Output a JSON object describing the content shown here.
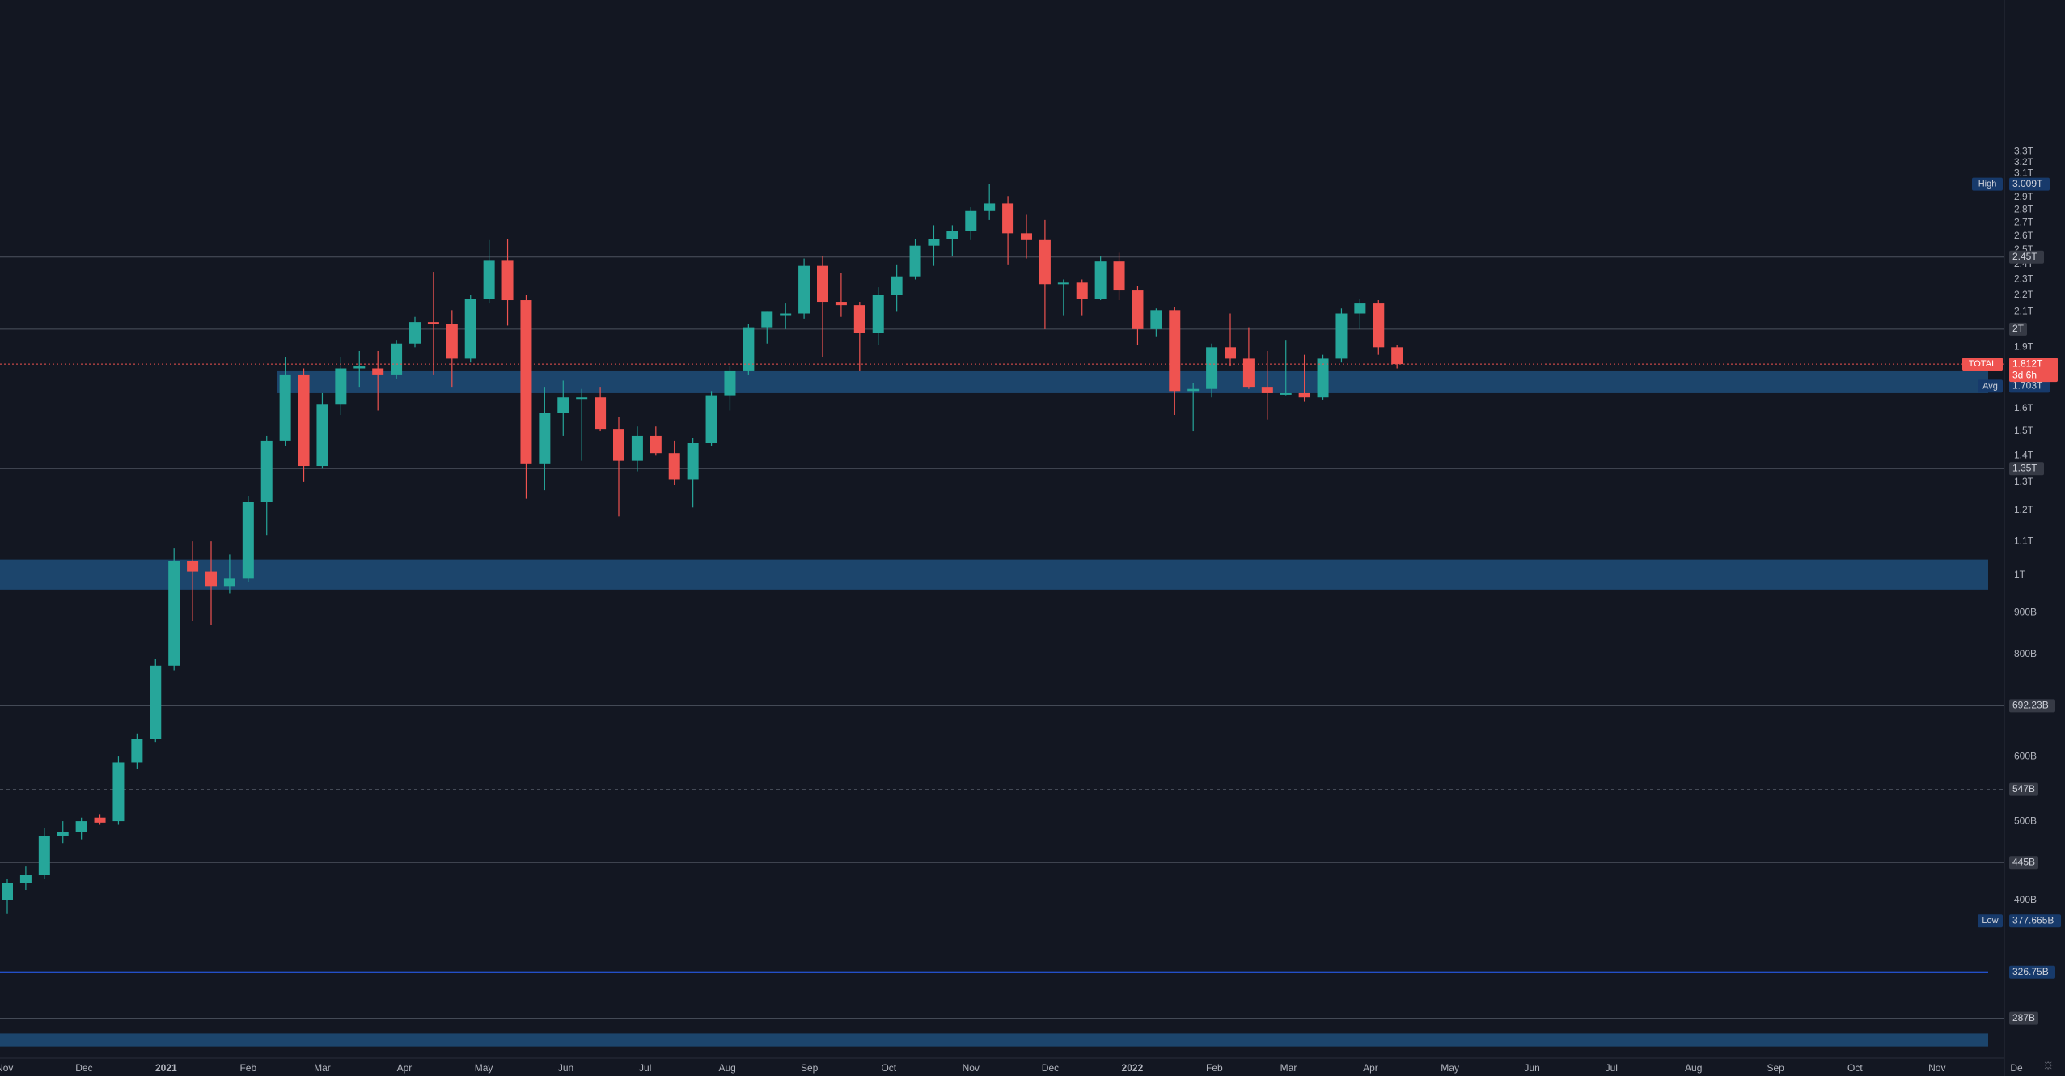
{
  "chart_data": {
    "type": "candlestick",
    "symbol": "TOTAL",
    "countdown": "3d 6h",
    "interval": "weekly",
    "x_start": "2020-11-02",
    "x_end": "2022-12-01",
    "y_scale": "log",
    "ylim": [
      260,
      3400
    ],
    "colors": {
      "background": "#131722",
      "up": "#26a69a",
      "down": "#ef5350",
      "zone": "#1f4e79",
      "line": "#4c525e",
      "tag": "#363a45",
      "blue_tag": "#173a6b",
      "axis_text": "#b2b5be"
    },
    "y_ticks": [
      {
        "value": 3300,
        "label": "3.3T"
      },
      {
        "value": 3200,
        "label": "3.2T"
      },
      {
        "value": 3100,
        "label": "3.1T"
      },
      {
        "value": 2900,
        "label": "2.9T"
      },
      {
        "value": 2800,
        "label": "2.8T"
      },
      {
        "value": 2700,
        "label": "2.7T"
      },
      {
        "value": 2600,
        "label": "2.6T"
      },
      {
        "value": 2500,
        "label": "2.5T"
      },
      {
        "value": 2400,
        "label": "2.4T"
      },
      {
        "value": 2300,
        "label": "2.3T"
      },
      {
        "value": 2200,
        "label": "2.2T"
      },
      {
        "value": 2100,
        "label": "2.1T"
      },
      {
        "value": 1900,
        "label": "1.9T"
      },
      {
        "value": 1600,
        "label": "1.6T"
      },
      {
        "value": 1500,
        "label": "1.5T"
      },
      {
        "value": 1400,
        "label": "1.4T"
      },
      {
        "value": 1300,
        "label": "1.3T"
      },
      {
        "value": 1200,
        "label": "1.2T"
      },
      {
        "value": 1100,
        "label": "1.1T"
      },
      {
        "value": 1000,
        "label": "1T"
      },
      {
        "value": 900,
        "label": "900B"
      },
      {
        "value": 800,
        "label": "800B"
      },
      {
        "value": 600,
        "label": "600B"
      },
      {
        "value": 500,
        "label": "500B"
      },
      {
        "value": 400,
        "label": "400B"
      }
    ],
    "x_ticks": [
      {
        "date": "2020-11-01",
        "label": "Nov",
        "bold": false
      },
      {
        "date": "2020-12-01",
        "label": "Dec",
        "bold": false
      },
      {
        "date": "2021-01-01",
        "label": "2021",
        "bold": true
      },
      {
        "date": "2021-02-01",
        "label": "Feb",
        "bold": false
      },
      {
        "date": "2021-03-01",
        "label": "Mar",
        "bold": false
      },
      {
        "date": "2021-04-01",
        "label": "Apr",
        "bold": false
      },
      {
        "date": "2021-05-01",
        "label": "May",
        "bold": false
      },
      {
        "date": "2021-06-01",
        "label": "Jun",
        "bold": false
      },
      {
        "date": "2021-07-01",
        "label": "Jul",
        "bold": false
      },
      {
        "date": "2021-08-01",
        "label": "Aug",
        "bold": false
      },
      {
        "date": "2021-09-01",
        "label": "Sep",
        "bold": false
      },
      {
        "date": "2021-10-01",
        "label": "Oct",
        "bold": false
      },
      {
        "date": "2021-11-01",
        "label": "Nov",
        "bold": false
      },
      {
        "date": "2021-12-01",
        "label": "Dec",
        "bold": false
      },
      {
        "date": "2022-01-01",
        "label": "2022",
        "bold": true
      },
      {
        "date": "2022-02-01",
        "label": "Feb",
        "bold": false
      },
      {
        "date": "2022-03-01",
        "label": "Mar",
        "bold": false
      },
      {
        "date": "2022-04-01",
        "label": "Apr",
        "bold": false
      },
      {
        "date": "2022-05-01",
        "label": "May",
        "bold": false
      },
      {
        "date": "2022-06-01",
        "label": "Jun",
        "bold": false
      },
      {
        "date": "2022-07-01",
        "label": "Jul",
        "bold": false
      },
      {
        "date": "2022-08-01",
        "label": "Aug",
        "bold": false
      },
      {
        "date": "2022-09-01",
        "label": "Sep",
        "bold": false
      },
      {
        "date": "2022-10-01",
        "label": "Oct",
        "bold": false
      },
      {
        "date": "2022-11-01",
        "label": "Nov",
        "bold": false
      },
      {
        "date": "2022-12-01",
        "label": "De",
        "bold": false
      }
    ],
    "horizontal_levels": [
      {
        "value": 2450,
        "label": "2.45T",
        "style": "solid"
      },
      {
        "value": 2000,
        "label": "2T",
        "style": "solid"
      },
      {
        "value": 1350,
        "label": "1.35T",
        "style": "solid"
      },
      {
        "value": 692.23,
        "label": "692.23B",
        "style": "solid"
      },
      {
        "value": 547,
        "label": "547B",
        "style": "dashed"
      },
      {
        "value": 445,
        "label": "445B",
        "style": "solid"
      },
      {
        "value": 326.75,
        "label": "326.75B",
        "style": "blue"
      },
      {
        "value": 287,
        "label": "287B",
        "style": "solid"
      }
    ],
    "zones": [
      {
        "from": 1670,
        "to": 1780,
        "start_date": "2021-02-15"
      },
      {
        "from": 960,
        "to": 1045,
        "start_date": "2020-11-02"
      },
      {
        "from": 265,
        "to": 275,
        "start_date": "2020-11-02"
      }
    ],
    "markers": [
      {
        "name": "High",
        "value": 3009,
        "label": "3.009T"
      },
      {
        "name": "Avg",
        "value": 1703,
        "label": "1.703T"
      },
      {
        "name": "Low",
        "value": 377.665,
        "label": "377.665B"
      }
    ],
    "last_price": {
      "value": 1812,
      "label": "1.812T"
    },
    "candles": [
      {
        "date": "2020-11-02",
        "o": 400,
        "h": 425,
        "l": 385,
        "c": 420
      },
      {
        "date": "2020-11-09",
        "o": 420,
        "h": 440,
        "l": 412,
        "c": 430
      },
      {
        "date": "2020-11-16",
        "o": 430,
        "h": 490,
        "l": 425,
        "c": 480
      },
      {
        "date": "2020-11-23",
        "o": 480,
        "h": 500,
        "l": 470,
        "c": 485
      },
      {
        "date": "2020-11-30",
        "o": 485,
        "h": 505,
        "l": 475,
        "c": 500
      },
      {
        "date": "2020-12-07",
        "o": 505,
        "h": 510,
        "l": 495,
        "c": 498
      },
      {
        "date": "2020-12-14",
        "o": 500,
        "h": 600,
        "l": 495,
        "c": 590
      },
      {
        "date": "2020-12-21",
        "o": 590,
        "h": 640,
        "l": 580,
        "c": 630
      },
      {
        "date": "2020-12-28",
        "o": 630,
        "h": 790,
        "l": 625,
        "c": 775
      },
      {
        "date": "2021-01-04",
        "o": 775,
        "h": 1080,
        "l": 765,
        "c": 1040
      },
      {
        "date": "2021-01-11",
        "o": 1040,
        "h": 1100,
        "l": 880,
        "c": 1010
      },
      {
        "date": "2021-01-18",
        "o": 1010,
        "h": 1100,
        "l": 870,
        "c": 970
      },
      {
        "date": "2021-01-25",
        "o": 970,
        "h": 1060,
        "l": 950,
        "c": 990
      },
      {
        "date": "2021-02-01",
        "o": 990,
        "h": 1250,
        "l": 980,
        "c": 1230
      },
      {
        "date": "2021-02-08",
        "o": 1230,
        "h": 1480,
        "l": 1120,
        "c": 1460
      },
      {
        "date": "2021-02-15",
        "o": 1460,
        "h": 1850,
        "l": 1440,
        "c": 1760
      },
      {
        "date": "2021-02-22",
        "o": 1760,
        "h": 1790,
        "l": 1300,
        "c": 1360
      },
      {
        "date": "2021-03-01",
        "o": 1360,
        "h": 1670,
        "l": 1350,
        "c": 1620
      },
      {
        "date": "2021-03-08",
        "o": 1620,
        "h": 1850,
        "l": 1570,
        "c": 1790
      },
      {
        "date": "2021-03-15",
        "o": 1790,
        "h": 1880,
        "l": 1700,
        "c": 1800
      },
      {
        "date": "2021-03-22",
        "o": 1790,
        "h": 1880,
        "l": 1590,
        "c": 1760
      },
      {
        "date": "2021-03-29",
        "o": 1760,
        "h": 1940,
        "l": 1740,
        "c": 1920
      },
      {
        "date": "2021-04-05",
        "o": 1920,
        "h": 2070,
        "l": 1900,
        "c": 2040
      },
      {
        "date": "2021-04-12",
        "o": 2040,
        "h": 2350,
        "l": 1760,
        "c": 2030
      },
      {
        "date": "2021-04-19",
        "o": 2030,
        "h": 2110,
        "l": 1700,
        "c": 1840
      },
      {
        "date": "2021-04-26",
        "o": 1840,
        "h": 2200,
        "l": 1820,
        "c": 2180
      },
      {
        "date": "2021-05-03",
        "o": 2180,
        "h": 2570,
        "l": 2150,
        "c": 2430
      },
      {
        "date": "2021-05-10",
        "o": 2430,
        "h": 2580,
        "l": 2020,
        "c": 2170
      },
      {
        "date": "2021-05-17",
        "o": 2170,
        "h": 2200,
        "l": 1240,
        "c": 1370
      },
      {
        "date": "2021-05-24",
        "o": 1370,
        "h": 1700,
        "l": 1270,
        "c": 1580
      },
      {
        "date": "2021-05-31",
        "o": 1580,
        "h": 1730,
        "l": 1480,
        "c": 1650
      },
      {
        "date": "2021-06-07",
        "o": 1650,
        "h": 1690,
        "l": 1380,
        "c": 1650
      },
      {
        "date": "2021-06-14",
        "o": 1650,
        "h": 1700,
        "l": 1500,
        "c": 1510
      },
      {
        "date": "2021-06-21",
        "o": 1510,
        "h": 1560,
        "l": 1180,
        "c": 1380
      },
      {
        "date": "2021-06-28",
        "o": 1380,
        "h": 1520,
        "l": 1340,
        "c": 1480
      },
      {
        "date": "2021-07-05",
        "o": 1480,
        "h": 1520,
        "l": 1400,
        "c": 1410
      },
      {
        "date": "2021-07-12",
        "o": 1410,
        "h": 1460,
        "l": 1290,
        "c": 1310
      },
      {
        "date": "2021-07-19",
        "o": 1310,
        "h": 1470,
        "l": 1210,
        "c": 1450
      },
      {
        "date": "2021-07-26",
        "o": 1450,
        "h": 1680,
        "l": 1440,
        "c": 1660
      },
      {
        "date": "2021-08-02",
        "o": 1660,
        "h": 1800,
        "l": 1590,
        "c": 1780
      },
      {
        "date": "2021-08-09",
        "o": 1780,
        "h": 2030,
        "l": 1760,
        "c": 2010
      },
      {
        "date": "2021-08-16",
        "o": 2010,
        "h": 2100,
        "l": 1920,
        "c": 2100
      },
      {
        "date": "2021-08-23",
        "o": 2090,
        "h": 2150,
        "l": 2000,
        "c": 2090
      },
      {
        "date": "2021-08-30",
        "o": 2090,
        "h": 2440,
        "l": 2060,
        "c": 2390
      },
      {
        "date": "2021-09-06",
        "o": 2390,
        "h": 2460,
        "l": 1850,
        "c": 2160
      },
      {
        "date": "2021-09-13",
        "o": 2160,
        "h": 2340,
        "l": 2070,
        "c": 2140
      },
      {
        "date": "2021-09-20",
        "o": 2140,
        "h": 2160,
        "l": 1780,
        "c": 1980
      },
      {
        "date": "2021-09-27",
        "o": 1980,
        "h": 2250,
        "l": 1910,
        "c": 2200
      },
      {
        "date": "2021-10-04",
        "o": 2200,
        "h": 2400,
        "l": 2100,
        "c": 2320
      },
      {
        "date": "2021-10-11",
        "o": 2320,
        "h": 2580,
        "l": 2300,
        "c": 2530
      },
      {
        "date": "2021-10-18",
        "o": 2530,
        "h": 2680,
        "l": 2390,
        "c": 2580
      },
      {
        "date": "2021-10-25",
        "o": 2580,
        "h": 2680,
        "l": 2460,
        "c": 2640
      },
      {
        "date": "2021-11-01",
        "o": 2640,
        "h": 2820,
        "l": 2570,
        "c": 2790
      },
      {
        "date": "2021-11-08",
        "o": 2790,
        "h": 3010,
        "l": 2720,
        "c": 2850
      },
      {
        "date": "2021-11-15",
        "o": 2850,
        "h": 2910,
        "l": 2400,
        "c": 2620
      },
      {
        "date": "2021-11-22",
        "o": 2620,
        "h": 2760,
        "l": 2440,
        "c": 2570
      },
      {
        "date": "2021-11-29",
        "o": 2570,
        "h": 2720,
        "l": 2000,
        "c": 2270
      },
      {
        "date": "2021-12-06",
        "o": 2270,
        "h": 2300,
        "l": 2080,
        "c": 2280
      },
      {
        "date": "2021-12-13",
        "o": 2280,
        "h": 2300,
        "l": 2080,
        "c": 2180
      },
      {
        "date": "2021-12-20",
        "o": 2180,
        "h": 2460,
        "l": 2170,
        "c": 2420
      },
      {
        "date": "2021-12-27",
        "o": 2420,
        "h": 2480,
        "l": 2170,
        "c": 2230
      },
      {
        "date": "2022-01-03",
        "o": 2230,
        "h": 2260,
        "l": 1910,
        "c": 2000
      },
      {
        "date": "2022-01-10",
        "o": 2000,
        "h": 2120,
        "l": 1960,
        "c": 2110
      },
      {
        "date": "2022-01-17",
        "o": 2110,
        "h": 2130,
        "l": 1570,
        "c": 1680
      },
      {
        "date": "2022-01-24",
        "o": 1680,
        "h": 1720,
        "l": 1500,
        "c": 1690
      },
      {
        "date": "2022-01-31",
        "o": 1690,
        "h": 1920,
        "l": 1650,
        "c": 1900
      },
      {
        "date": "2022-02-07",
        "o": 1900,
        "h": 2090,
        "l": 1800,
        "c": 1840
      },
      {
        "date": "2022-02-14",
        "o": 1840,
        "h": 2010,
        "l": 1690,
        "c": 1700
      },
      {
        "date": "2022-02-21",
        "o": 1700,
        "h": 1880,
        "l": 1550,
        "c": 1670
      },
      {
        "date": "2022-02-28",
        "o": 1670,
        "h": 1940,
        "l": 1660,
        "c": 1670
      },
      {
        "date": "2022-03-07",
        "o": 1670,
        "h": 1860,
        "l": 1630,
        "c": 1650
      },
      {
        "date": "2022-03-14",
        "o": 1650,
        "h": 1860,
        "l": 1640,
        "c": 1840
      },
      {
        "date": "2022-03-21",
        "o": 1840,
        "h": 2120,
        "l": 1820,
        "c": 2090
      },
      {
        "date": "2022-03-28",
        "o": 2090,
        "h": 2180,
        "l": 2000,
        "c": 2150
      },
      {
        "date": "2022-04-04",
        "o": 2150,
        "h": 2170,
        "l": 1860,
        "c": 1900
      },
      {
        "date": "2022-04-11",
        "o": 1900,
        "h": 1910,
        "l": 1790,
        "c": 1812
      }
    ]
  }
}
